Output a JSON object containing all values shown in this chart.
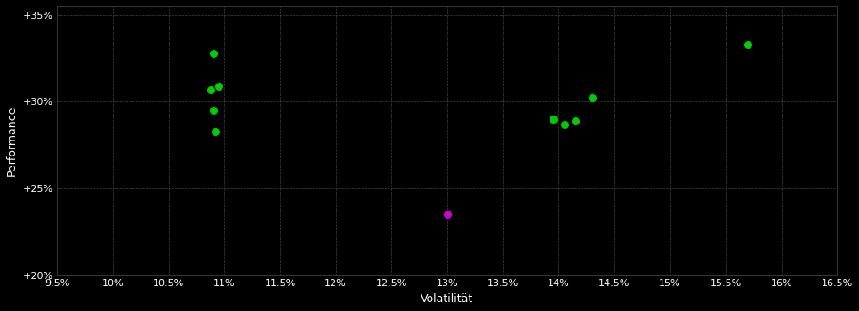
{
  "background_color": "#000000",
  "grid_color": "#333333",
  "point_color_green": "#00cc00",
  "point_color_magenta": "#cc00cc",
  "point_size": 30,
  "xlim": [
    0.095,
    0.165
  ],
  "ylim": [
    0.2,
    0.355
  ],
  "xticks": [
    0.095,
    0.1,
    0.105,
    0.11,
    0.115,
    0.12,
    0.125,
    0.13,
    0.135,
    0.14,
    0.145,
    0.15,
    0.155,
    0.16,
    0.165
  ],
  "yticks": [
    0.2,
    0.25,
    0.3,
    0.35
  ],
  "xlabel": "Volatilität",
  "ylabel": "Performance",
  "green_points": [
    [
      0.109,
      0.328
    ],
    [
      0.1088,
      0.307
    ],
    [
      0.1095,
      0.309
    ],
    [
      0.109,
      0.295
    ],
    [
      0.1092,
      0.283
    ],
    [
      0.1395,
      0.29
    ],
    [
      0.1405,
      0.287
    ],
    [
      0.1415,
      0.289
    ],
    [
      0.143,
      0.302
    ],
    [
      0.157,
      0.333
    ]
  ],
  "magenta_points": [
    [
      0.13,
      0.235
    ]
  ]
}
